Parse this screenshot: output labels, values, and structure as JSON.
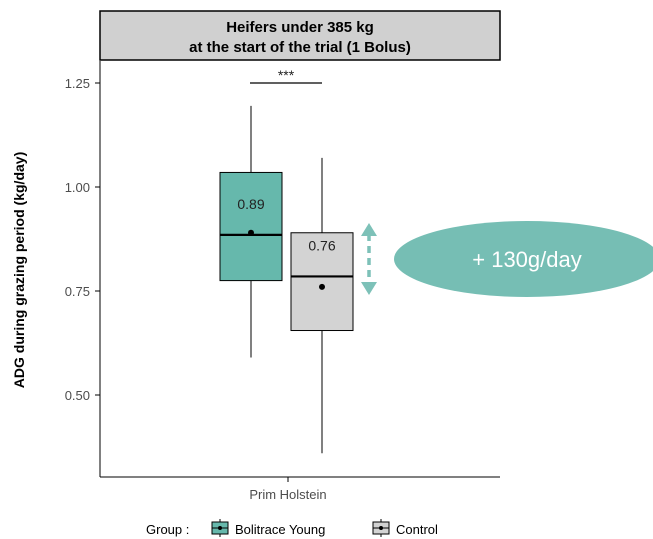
{
  "chart_data": {
    "type": "boxplot",
    "panel_title_line1": "Heifers under 385 kg",
    "panel_title_line2": "at the start of the trial (1 Bolus)",
    "ylabel": "ADG during grazing period (kg/day)",
    "xlabel": "",
    "categories": [
      "Prim Holstein"
    ],
    "ylim": [
      0.35,
      1.32
    ],
    "yticks": [
      0.5,
      0.75,
      1.0,
      1.25
    ],
    "ytick_labels": [
      "0.50",
      "0.75",
      "1.00",
      "1.25"
    ],
    "grid": false,
    "legend": {
      "position": "bottom",
      "title": "Group :",
      "entries": [
        "Bolitrace Young",
        "Control"
      ]
    },
    "series": [
      {
        "name": "Bolitrace Young",
        "color": "#66b8ac",
        "whisker_low": 0.59,
        "q1": 0.775,
        "median": 0.885,
        "q3": 1.035,
        "whisker_high": 1.195,
        "mean": 0.89,
        "mean_label": "0.89"
      },
      {
        "name": "Control",
        "color": "#d3d3d3",
        "whisker_low": 0.36,
        "q1": 0.655,
        "median": 0.785,
        "q3": 0.89,
        "whisker_high": 1.07,
        "mean": 0.76,
        "mean_label": "0.76"
      }
    ],
    "significance": "***",
    "annotation": {
      "text": "+ 130g/day",
      "color": "#76beb4"
    }
  }
}
